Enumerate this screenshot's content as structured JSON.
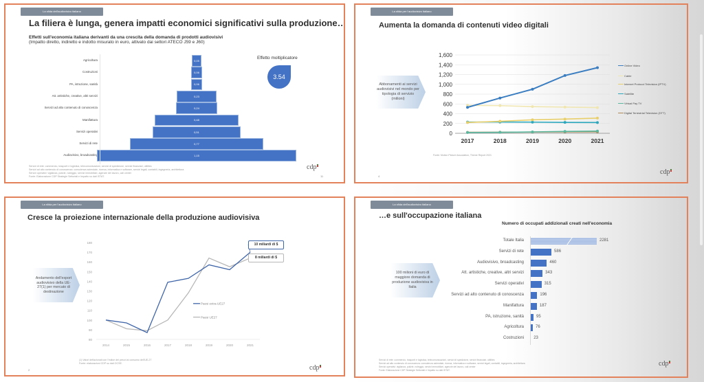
{
  "viewer": {
    "scrollbar": "vertical-scrollbar"
  },
  "slides": [
    {
      "tag": "La sfida dell'audiovisivo italiano",
      "title": "La filiera è lunga, genera impatti economici significativi sulla produzione…",
      "subtitle_bold": "Effetti sull'economia italiana derivanti da una crescita della domanda di prodotti audiovisivi",
      "subtitle_sub": "(Impatto diretto, indiretto e indotto misurato in euro, attivato dai settori ATECO J59 e J60)",
      "multiplier_label": "Effetto moltiplicatore",
      "multiplier_value": "3.54",
      "footnotes": [
        "Servizi di rete: commercio, trasporti e logistica, telecomunicazioni, servizi di spedizione, servizi finanziari, utilities",
        "Servizi ad alto contenuto di conoscenza: consulenza aziendale, ricerca, informatica e software, servizi legali, contabili, ingegneria, architettura",
        "Servizi operativi: vigilanza, pulizie, noleggio, servizi immobiliari, agenzie del lavoro, call center",
        "Fonte: Elaborazione CDP Strategie Settoriali e Impatto su dati ISTAT."
      ],
      "logo": "cdp",
      "page": "11"
    },
    {
      "tag": "La sfida per l'audiovisivo italiano",
      "title": "Aumenta la domanda di contenuti video digitali",
      "callout": "Abbonamenti ai servizi audiovisivi nel mondo per tipologia di servizio (milioni)",
      "source": "Fonte: Motion Picture Association, Theme Report 2021",
      "logo": "cdp",
      "page": "4"
    },
    {
      "tag": "La sfida per l'audiovisivo italiano",
      "title": "Cresce la proiezione internazionale della produzione audiovisiva",
      "callout": "Andamento dell'export audiovisivo della UE-27(1) per mercato di destinazione",
      "box_top": "10 miliardi di $",
      "box_bottom": "8 miliardi di $",
      "note": "(1) Valori deflazionati con l'indice dei prezzi al consumo dell'UE-27",
      "source": "Fonte: elaborazioni CDP su dati OCSE.",
      "logo": "cdp",
      "page": "2"
    },
    {
      "tag": "La sfida dell'audiovisivo italiano",
      "title": "…e sull'occupazione italiana",
      "callout": "100 milioni di euro di maggiore domanda di produzione audiovisiva in Italia",
      "footnotes": [
        "Servizi di rete: commercio, trasporti e logistica, telecomunicazioni, servizi di spedizione, servizi finanziari, utilities",
        "Servizi ad alto contenuto di conoscenza: consulenza aziendale, ricerca, informatica e software, servizi legali, contabili, ingegneria, architettura",
        "Servizi operativi: vigilanza, pulizie, noleggio, servizi immobiliari, agenzie del lavoro, call center",
        "Fonte: Elaborazione CDP Strategie Settoriali e Impatto su dati ISTAT."
      ],
      "logo": "cdp",
      "page": "12"
    }
  ],
  "chart_data": [
    {
      "type": "bar",
      "orientation": "horizontal-pyramid",
      "title": "Effetti sull'economia italiana derivanti da una crescita della domanda di prodotti audiovisivi",
      "categories": [
        "Agricoltura",
        "Costruzioni",
        "PA, istruzione, sanità",
        "Att. artistiche, creative, altri servizi",
        "Servizi ad alto contenuto di conoscenza",
        "Manifattura",
        "Servizi operativi",
        "Servizi di rete",
        "Audiovisivo, broadcasting"
      ],
      "values": [
        0.05,
        0.06,
        0.06,
        0.23,
        0.24,
        0.48,
        0.51,
        0.77,
        1.15
      ],
      "value_labels": [
        "0,05",
        "0,06",
        "0,06",
        "0,23",
        "0,24",
        "0,48",
        "0,51",
        "0,77",
        "1,15"
      ],
      "color": "#4472c4"
    },
    {
      "type": "line",
      "title": "Abbonamenti ai servizi audiovisivi nel mondo per tipologia di servizio (milioni)",
      "x": [
        "2017",
        "2018",
        "2019",
        "2020",
        "2021"
      ],
      "ylim": [
        0,
        1600
      ],
      "yticks": [
        "0",
        "200",
        "400",
        "600",
        "800",
        "1,000",
        "1,200",
        "1,400",
        "1,600"
      ],
      "grid": true,
      "legend": "right",
      "series": [
        {
          "name": "Online Video",
          "values": [
            530,
            720,
            900,
            1180,
            1340
          ],
          "color": "#3a7dc0"
        },
        {
          "name": "Cable",
          "values": [
            570,
            565,
            545,
            535,
            525
          ],
          "color": "#f0e6b0"
        },
        {
          "name": "Internet Protocol Television (IPTV)",
          "values": [
            220,
            245,
            275,
            290,
            310
          ],
          "color": "#e8cf6a"
        },
        {
          "name": "Satellite",
          "values": [
            230,
            230,
            228,
            222,
            220
          ],
          "color": "#2aa7bd"
        },
        {
          "name": "Virtual Pay TV",
          "values": [
            15,
            20,
            28,
            38,
            45
          ],
          "color": "#5ab8a0"
        },
        {
          "name": "Digital Terrestrial Television (DTT)",
          "values": [
            20,
            22,
            25,
            28,
            30
          ],
          "color": "#b08a55"
        }
      ]
    },
    {
      "type": "line",
      "title": "Andamento dell'export audiovisivo della UE-27 per mercato di destinazione",
      "x": [
        "2014",
        "2015",
        "2016",
        "2017",
        "2018",
        "2019",
        "2020",
        "2021"
      ],
      "ylim": [
        80,
        180
      ],
      "yticks": [
        "80",
        "90",
        "100",
        "110",
        "120",
        "130",
        "140",
        "150",
        "160",
        "170",
        "180"
      ],
      "grid": false,
      "legend": "center-right",
      "series": [
        {
          "name": "Paesi extra-UE27",
          "values": [
            100,
            97,
            87,
            139,
            143,
            157,
            152,
            170
          ],
          "color": "#3e64a8"
        },
        {
          "name": "Paesi UE27",
          "values": [
            100,
            91,
            89,
            100,
            128,
            164,
            155,
            164
          ],
          "color": "#b7b7b7"
        }
      ],
      "annotations": [
        "10 miliardi di $",
        "8 miliardi di $"
      ]
    },
    {
      "type": "bar",
      "orientation": "horizontal",
      "title": "Numero di occupati addizionali creati nell'economia",
      "categories": [
        "Totale Italia",
        "Servizi di rete",
        "Audiovisivo, broadcasting",
        "Att. artistiche, creative, altri servizi",
        "Servizi operativi",
        "Servizi ad alto contenuto di conoscenza",
        "Manifattura",
        "PA, istruzione, sanità",
        "Agricoltura",
        "Costruzioni"
      ],
      "values": [
        2281,
        586,
        460,
        343,
        315,
        196,
        187,
        95,
        76,
        23
      ],
      "axis_break_on_first": true,
      "color": "#4472c4"
    }
  ]
}
